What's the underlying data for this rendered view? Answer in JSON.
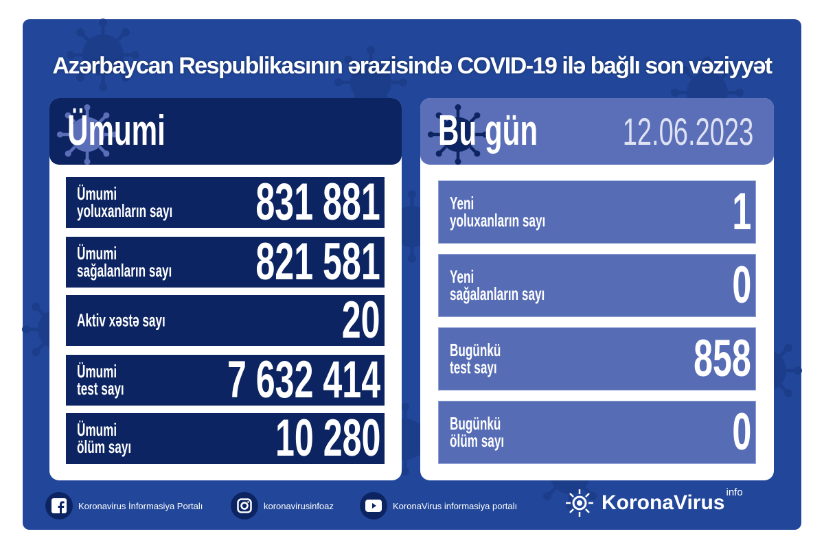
{
  "colors": {
    "frame": "#22479a",
    "dark_panel": "#0c2461",
    "light_panel": "#566cb5",
    "light_header": "#5a6fb8"
  },
  "title": "Azərbaycan Respublikasının ərazisində COVID-19 ilə bağlı son vəziyyət",
  "total": {
    "heading": "Ümumi",
    "rows": [
      {
        "line1": "Ümumi",
        "line2": "yoluxanların sayı",
        "value": "831 881"
      },
      {
        "line1": "Ümumi",
        "line2": "sağalanların sayı",
        "value": "821 581"
      },
      {
        "line1": "Aktiv xəstə sayı",
        "line2": "",
        "value": "20"
      },
      {
        "line1": "Ümumi",
        "line2": "test sayı",
        "value": "7 632 414"
      },
      {
        "line1": "Ümumi",
        "line2": "ölüm sayı",
        "value": "10 280"
      }
    ]
  },
  "today": {
    "heading": "Bu gün",
    "date": "12.06.2023",
    "rows": [
      {
        "line1": "Yeni",
        "line2": "yoluxanların sayı",
        "value": "1"
      },
      {
        "line1": "Yeni",
        "line2": "sağalanların sayı",
        "value": "0"
      },
      {
        "line1": "Bugünkü",
        "line2": "test sayı",
        "value": "858"
      },
      {
        "line1": "Bugünkü",
        "line2": "ölüm sayı",
        "value": "0"
      }
    ]
  },
  "footer": {
    "facebook": {
      "icon": "facebook-icon",
      "label": "Koronavirus İnformasiya Portalı"
    },
    "instagram": {
      "icon": "instagram-icon",
      "label": "koronavirusinfoaz"
    },
    "youtube": {
      "icon": "youtube-icon",
      "label": "KoronaVirus informasiya portalı"
    },
    "brand": {
      "name": "KoronaVirus",
      "sup": "info"
    }
  }
}
